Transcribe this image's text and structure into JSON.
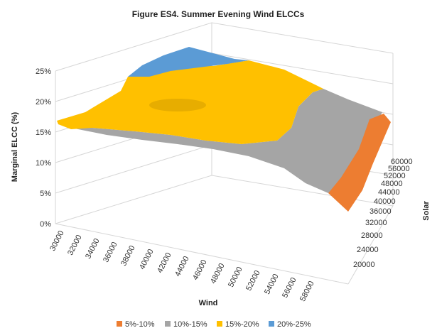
{
  "chart_data": {
    "type": "surface",
    "title": "Figure ES4. Summer Evening Wind ELCCs",
    "xlabel": "Wind",
    "ylabel": "Solar",
    "zlabel": "Marginal ELCC (%)",
    "x_ticks": [
      "30000",
      "32000",
      "34000",
      "36000",
      "38000",
      "40000",
      "42000",
      "44000",
      "46000",
      "48000",
      "50000",
      "52000",
      "54000",
      "56000",
      "58000"
    ],
    "y_ticks": [
      "20000",
      "24000",
      "28000",
      "32000",
      "36000",
      "40000",
      "44000",
      "48000",
      "52000",
      "56000",
      "60000"
    ],
    "z_ticks": [
      "0%",
      "5%",
      "10%",
      "15%",
      "20%",
      "25%"
    ],
    "zlim": [
      0,
      25
    ],
    "bands": [
      {
        "name": "5%-10%",
        "color": "#ED7D31"
      },
      {
        "name": "10%-15%",
        "color": "#A5A5A5"
      },
      {
        "name": "15%-20%",
        "color": "#FFC000"
      },
      {
        "name": "20%-25%",
        "color": "#5B9BD5"
      }
    ],
    "legend_position": "bottom"
  }
}
